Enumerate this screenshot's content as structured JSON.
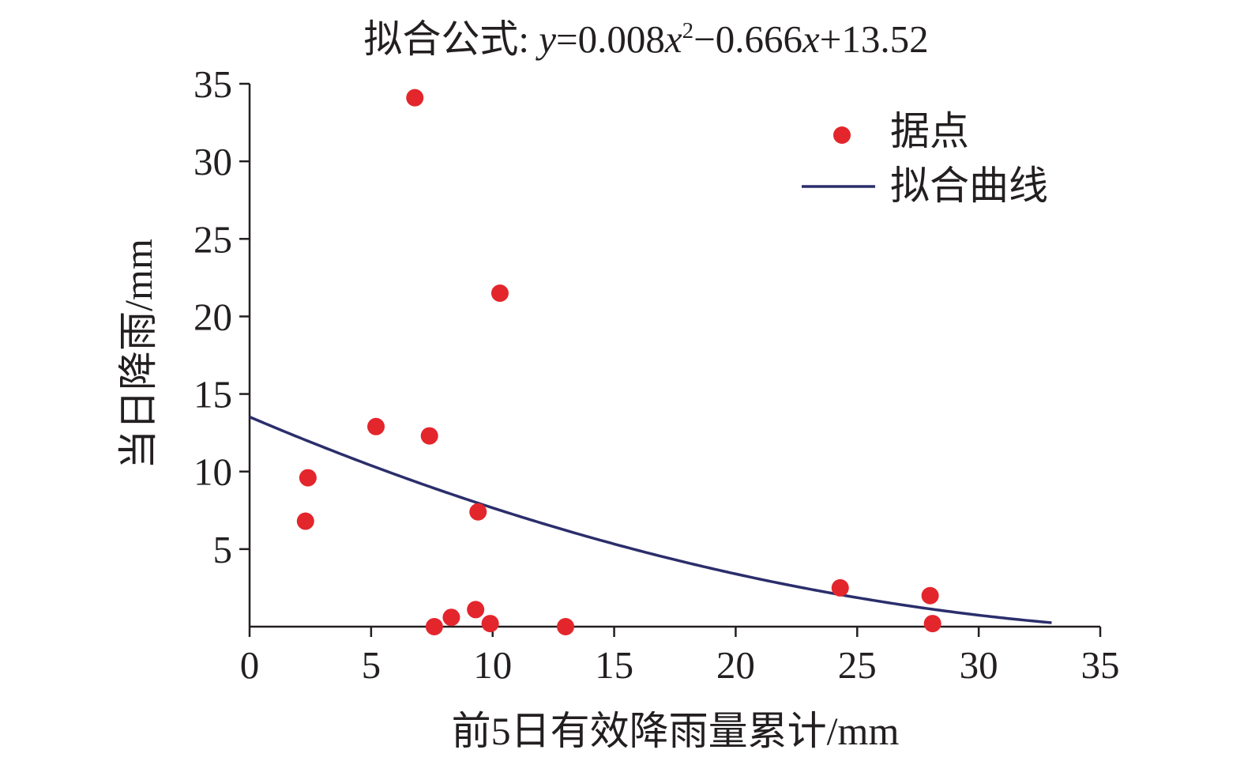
{
  "chart_data": {
    "type": "scatter",
    "title": {
      "prefix": "拟合公式: ",
      "y": "y",
      "eq1": "=0.008",
      "x1": "x",
      "sup": "2",
      "minus": "−0.666",
      "x2": "x",
      "tail": "+13.52"
    },
    "xlabel": "前5日有效降雨量累计/mm",
    "ylabel": "当日降雨/mm",
    "xlim": [
      0,
      35
    ],
    "ylim": [
      0,
      35
    ],
    "xticks": [
      0,
      5,
      10,
      15,
      20,
      25,
      30,
      35
    ],
    "yticks": [
      5,
      10,
      15,
      20,
      25,
      30,
      35
    ],
    "grid": false,
    "legend_position": "top-right",
    "series": [
      {
        "name": "据点",
        "kind": "scatter",
        "color": "#e3262c",
        "points": [
          {
            "x": 2.3,
            "y": 6.8
          },
          {
            "x": 2.4,
            "y": 9.6
          },
          {
            "x": 5.2,
            "y": 12.9
          },
          {
            "x": 6.8,
            "y": 34.1
          },
          {
            "x": 7.4,
            "y": 12.3
          },
          {
            "x": 7.6,
            "y": 0.0
          },
          {
            "x": 8.3,
            "y": 0.6
          },
          {
            "x": 9.3,
            "y": 1.1
          },
          {
            "x": 9.4,
            "y": 7.4
          },
          {
            "x": 9.9,
            "y": 0.2
          },
          {
            "x": 10.3,
            "y": 21.5
          },
          {
            "x": 13.0,
            "y": 0.0
          },
          {
            "x": 24.3,
            "y": 2.5
          },
          {
            "x": 28.0,
            "y": 2.0
          },
          {
            "x": 28.1,
            "y": 0.2
          }
        ]
      },
      {
        "name": "拟合曲线",
        "kind": "line",
        "color": "#2b2e6b",
        "equation": {
          "a": 0.008,
          "b": -0.666,
          "c": 13.52
        },
        "x_range": [
          0,
          33
        ]
      }
    ]
  }
}
